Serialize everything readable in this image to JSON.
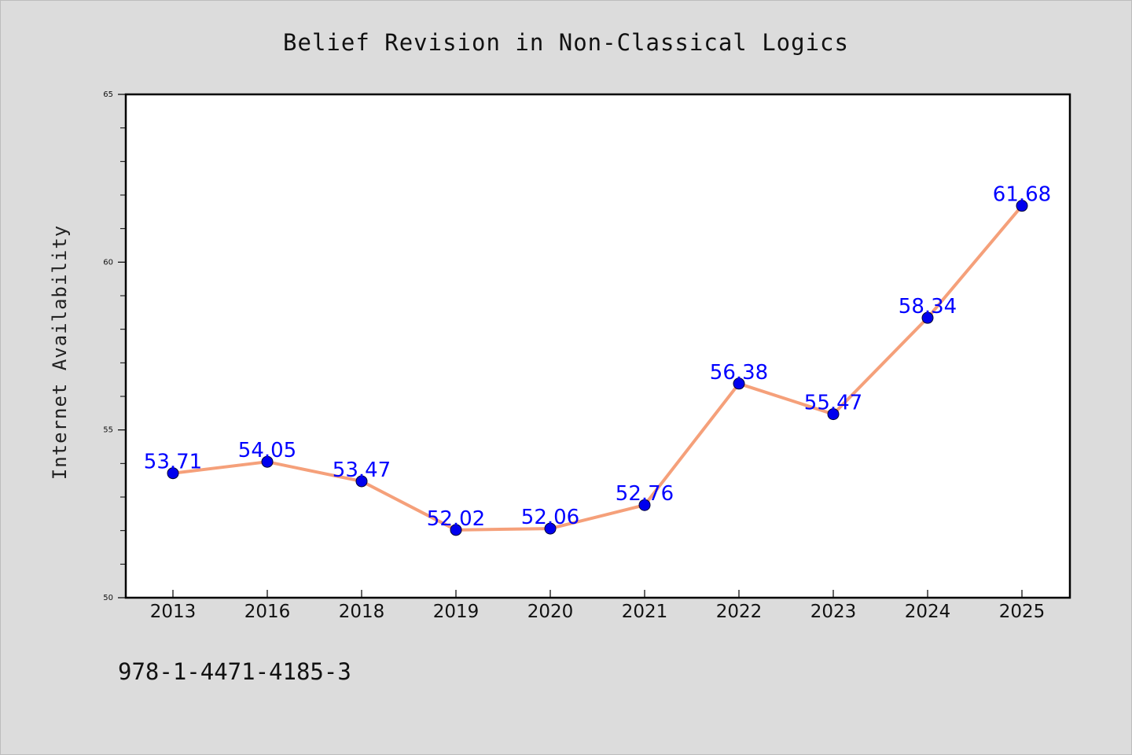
{
  "chart_data": {
    "type": "line",
    "title": "Belief Revision in Non-Classical Logics",
    "ylabel": "Internet Availability",
    "xlabel": "",
    "categories": [
      "2013",
      "2016",
      "2018",
      "2019",
      "2020",
      "2021",
      "2022",
      "2023",
      "2024",
      "2025"
    ],
    "values": [
      53.71,
      54.05,
      53.47,
      52.02,
      52.06,
      52.76,
      56.38,
      55.47,
      58.34,
      61.68
    ],
    "data_labels": [
      "53.71",
      "54.05",
      "53.47",
      "52.02",
      "52.06",
      "52.76",
      "56.38",
      "55.47",
      "58.34",
      "61.68"
    ],
    "ylim": [
      50,
      65
    ],
    "yticks": [
      50,
      55,
      60,
      65
    ],
    "ytick_labels": [
      "50",
      "55",
      "60",
      "65"
    ],
    "grid": false,
    "legend": "none",
    "colors": {
      "line": "#f5a07a",
      "marker": "#0000ee",
      "marker_edge": "#000033",
      "label": "#0000ff",
      "background": "#dcdcdc",
      "plot_background": "#ffffff"
    }
  },
  "footer": {
    "isbn": "978-1-4471-4185-3"
  }
}
